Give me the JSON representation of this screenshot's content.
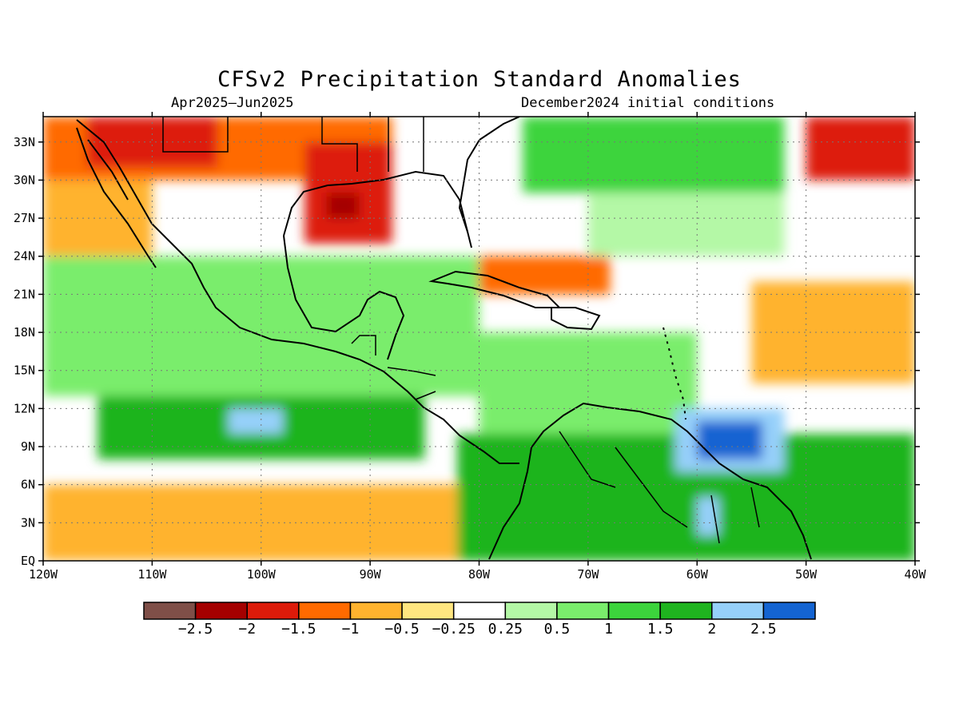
{
  "title": "CFSv2 Precipitation Standard Anomalies",
  "subtitle_left": "Apr2025–Jun2025",
  "subtitle_right": "December2024 initial conditions",
  "map": {
    "lon_range": [
      -120,
      -40
    ],
    "lat_range": [
      0,
      35
    ],
    "lon_ticks": [
      {
        "value": -120,
        "label": "120W"
      },
      {
        "value": -110,
        "label": "110W"
      },
      {
        "value": -100,
        "label": "100W"
      },
      {
        "value": -90,
        "label": "90W"
      },
      {
        "value": -80,
        "label": "80W"
      },
      {
        "value": -70,
        "label": "70W"
      },
      {
        "value": -60,
        "label": "60W"
      },
      {
        "value": -50,
        "label": "50W"
      },
      {
        "value": -40,
        "label": "40W"
      }
    ],
    "lat_ticks": [
      {
        "value": 0,
        "label": "EQ"
      },
      {
        "value": 3,
        "label": "3N"
      },
      {
        "value": 6,
        "label": "6N"
      },
      {
        "value": 9,
        "label": "9N"
      },
      {
        "value": 12,
        "label": "12N"
      },
      {
        "value": 15,
        "label": "15N"
      },
      {
        "value": 18,
        "label": "18N"
      },
      {
        "value": 21,
        "label": "21N"
      },
      {
        "value": 24,
        "label": "24N"
      },
      {
        "value": 27,
        "label": "27N"
      },
      {
        "value": 30,
        "label": "30N"
      },
      {
        "value": 33,
        "label": "33N"
      }
    ],
    "grid": true,
    "field_cells": [
      {
        "lon": -120,
        "lat": 30,
        "lon2": -88,
        "lat2": 35,
        "level": -1
      },
      {
        "lon": -116,
        "lat": 31,
        "lon2": -104,
        "lat2": 35,
        "level": -1.5
      },
      {
        "lon": -96,
        "lat": 25,
        "lon2": -88,
        "lat2": 33,
        "level": -1.5
      },
      {
        "lon": -94,
        "lat": 27,
        "lon2": -91,
        "lat2": 29,
        "level": -2
      },
      {
        "lon": -120,
        "lat": 24,
        "lon2": -110,
        "lat2": 30,
        "level": -0.5
      },
      {
        "lon": -120,
        "lat": 13,
        "lon2": -80,
        "lat2": 24,
        "level": 0.5
      },
      {
        "lon": -115,
        "lat": 8,
        "lon2": -85,
        "lat2": 13,
        "level": 1.5
      },
      {
        "lon": -103,
        "lat": 10,
        "lon2": -98,
        "lat2": 12,
        "level": 2
      },
      {
        "lon": -120,
        "lat": 0,
        "lon2": -82,
        "lat2": 6,
        "level": -0.5
      },
      {
        "lon": -82,
        "lat": 0,
        "lon2": -40,
        "lat2": 10,
        "level": 1.5
      },
      {
        "lon": -80,
        "lat": 10,
        "lon2": -60,
        "lat2": 18,
        "level": 0.5
      },
      {
        "lon": -62,
        "lat": 7,
        "lon2": -52,
        "lat2": 12,
        "level": 2
      },
      {
        "lon": -60,
        "lat": 8,
        "lon2": -54,
        "lat2": 11,
        "level": 2.5
      },
      {
        "lon": -60,
        "lat": 2,
        "lon2": -58,
        "lat2": 5,
        "level": 2
      },
      {
        "lon": -80,
        "lat": 21,
        "lon2": -68,
        "lat2": 24,
        "level": -1
      },
      {
        "lon": -55,
        "lat": 14,
        "lon2": -40,
        "lat2": 22,
        "level": -0.5
      },
      {
        "lon": -50,
        "lat": 30,
        "lon2": -40,
        "lat2": 35,
        "level": -1.5
      },
      {
        "lon": -76,
        "lat": 29,
        "lon2": -52,
        "lat2": 35,
        "level": 1
      },
      {
        "lon": -70,
        "lat": 24,
        "lon2": -52,
        "lat2": 29,
        "level": 0.25
      }
    ]
  },
  "colorbar": {
    "colors": [
      "#7f4f48",
      "#a40000",
      "#dd1b0a",
      "#ff6a00",
      "#ffb32e",
      "#ffe680",
      "#ffffff",
      "#b4f8a6",
      "#7aed6c",
      "#3cd43c",
      "#1fb41f",
      "#96d0fa",
      "#1464d2"
    ],
    "labels": [
      "-2.5",
      "-2",
      "-1.5",
      "-1",
      "-0.5",
      "-0.25",
      "0.25",
      "0.5",
      "1",
      "1.5",
      "2",
      "2.5"
    ]
  }
}
